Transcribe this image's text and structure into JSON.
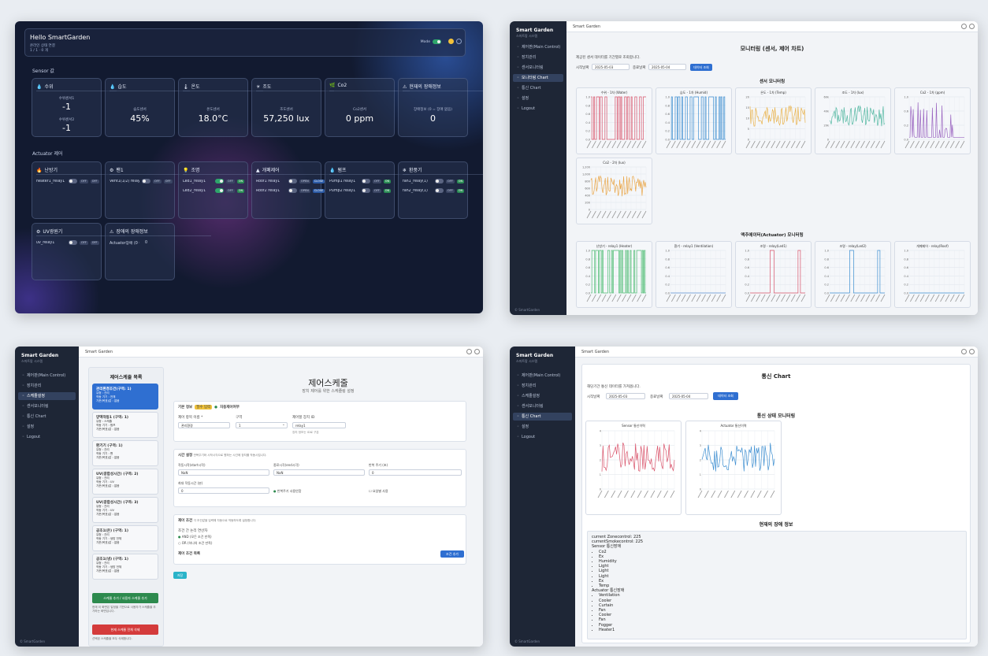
{
  "dashboard": {
    "title": "Hello SmartGarden",
    "sub1": "온라인 상태 연결",
    "sub2": "1 / 1 · 0 개",
    "header_right": "Mode",
    "sensor_section": "Sensor 값",
    "actuator_section": "Actuator 제어",
    "sensors": [
      {
        "icon": "💧",
        "name": "수위",
        "rows": [
          {
            "label": "수위센서1",
            "value": "-1"
          },
          {
            "label": "수위센서2",
            "value": "-1"
          }
        ]
      },
      {
        "icon": "💧",
        "name": "습도",
        "sub": "습도센서",
        "value": "45%"
      },
      {
        "icon": "🌡",
        "name": "온도",
        "sub": "온도센서",
        "value": "18.0°C"
      },
      {
        "icon": "☀",
        "name": "조도",
        "sub": "조도센서",
        "value": "57,250 lux"
      },
      {
        "icon": "🌿",
        "name": "Co2",
        "sub": "Co2센서",
        "value": "0 ppm"
      },
      {
        "icon": "⚠",
        "name": "현재의 장애정보",
        "sub": "장애정보 (0 = 장애 없음)",
        "value": "0"
      }
    ],
    "actuators": [
      {
        "icon": "🔥",
        "name": "난방기",
        "rows": [
          {
            "label": "heater1_relay1",
            "state": "OFF",
            "btn": "OFF"
          }
        ]
      },
      {
        "icon": "⚙",
        "name": "팬1",
        "rows": [
          {
            "label": "Vent1(1/2) relay(1)",
            "state": "OFF",
            "btn": "OFF"
          }
        ]
      },
      {
        "icon": "💡",
        "name": "조명",
        "rows": [
          {
            "label": "Led1_relay1",
            "state": "OFF",
            "btn": "ON"
          },
          {
            "label": "Led2_relay1",
            "state": "OFF",
            "btn": "ON"
          }
        ]
      },
      {
        "icon": "▲",
        "name": "개폐제어",
        "rows": [
          {
            "label": "Roof1 relay1",
            "state": "OPEN",
            "btn": "CLOSE"
          },
          {
            "label": "Roof2 relay1",
            "state": "OPEN",
            "btn": "CLOSE"
          }
        ]
      },
      {
        "icon": "💧",
        "name": "펌프",
        "rows": [
          {
            "label": "Pump1 relay1",
            "state": "OFF",
            "btn": "ON"
          },
          {
            "label": "Pump2 relay1",
            "state": "OFF",
            "btn": "ON"
          }
        ]
      },
      {
        "icon": "❄",
        "name": "환풍기",
        "rows": [
          {
            "label": "fan1_relay(1)",
            "state": "OFF",
            "btn": "ON"
          },
          {
            "label": "fan2_relay(1)",
            "state": "OFF",
            "btn": "ON"
          }
        ]
      },
      {
        "icon": "⚙",
        "name": "UV광원기",
        "rows": [
          {
            "label": "uv_relay1",
            "state": "OFF",
            "btn": "OFF"
          }
        ]
      },
      {
        "icon": "⚠",
        "name": "장애의 장애정보",
        "rows": [
          {
            "label": "Actuator장애 (0 = 정상)",
            "state": "0",
            "btn": ""
          }
        ]
      }
    ]
  },
  "monitor": {
    "brand": "Smart Garden",
    "brand_sub": "스마트팜 시스템",
    "topbar": "Smart Garden",
    "nav": [
      "제어판(Main Control)",
      "장치관리",
      "센서모니터링",
      "모니터링 Chart",
      "통신 Chart",
      "설정",
      "Logout"
    ],
    "nav_active": 3,
    "title": "모니터링 (센서, 제어 차트)",
    "desc": "제공된 센서 데이터를 기간별로 조회합니다.",
    "start_label": "시작날짜",
    "start": "2025-05-03",
    "end_label": "종료날짜",
    "end": "2025-05-04",
    "btn": "데이터 조회",
    "sensor_title": "센서 모니터링",
    "actuator_title": "액추에이터(Actuator) 모니터링",
    "footer": "© SmartGarden",
    "sensor_charts": [
      {
        "name": "수위 - 1차 (Water)",
        "color": "#d9536a",
        "ylabels": [
          "1.0",
          "0.8",
          "0.6",
          "0.4",
          "0.2",
          "0.0"
        ]
      },
      {
        "name": "습도 - 1차 (Humid)",
        "color": "#3e8fd1",
        "ylabels": [
          "1.0",
          "0.8",
          "0.6",
          "0.4",
          "0.2",
          "0.0"
        ]
      },
      {
        "name": "온도 - 1차 (Temp)",
        "color": "#e9b24a",
        "ylabels": [
          "20",
          "15",
          "10",
          "5",
          "0"
        ]
      },
      {
        "name": "조도 - 1차 (lux)",
        "color": "#54b8a2",
        "ylabels": [
          "60k",
          "40k",
          "20k",
          "0"
        ]
      },
      {
        "name": "Co2 - 1차 (ppm)",
        "color": "#9a65c0",
        "ylabels": [
          "1.0",
          "0.6",
          "0.2",
          "0.0"
        ]
      },
      {
        "name": "Co2 - 2차 (lux)",
        "color": "#e9a74a",
        "ylabels": [
          "1,200",
          "1,000",
          "800",
          "600",
          "400",
          "200",
          "0"
        ]
      }
    ],
    "actuator_charts": [
      {
        "name": "난방기 - relay1 (Heater)",
        "color": "#4fbd74",
        "ylabels": [
          "1.0",
          "0.8",
          "0.6",
          "0.4",
          "0.2",
          "0.0"
        ]
      },
      {
        "name": "환기 - relay1 (Ventilation)",
        "color": "#5a8fd1",
        "ylabels": [
          "1.0",
          "0.8",
          "0.6",
          "0.4",
          "0.2",
          "0.0"
        ]
      },
      {
        "name": "조명 - relay(Led1)",
        "color": "#d9536a",
        "ylabels": [
          "1.0",
          "0.8",
          "0.6",
          "0.4",
          "0.2",
          "0.0"
        ]
      },
      {
        "name": "조명 - relay(Led2)",
        "color": "#3e8fd1",
        "ylabels": [
          "1.0",
          "0.8",
          "0.6",
          "0.4",
          "0.2",
          "0.0"
        ]
      },
      {
        "name": "개폐제어 - relay(Roof)",
        "color": "#3e8fd1",
        "ylabels": [
          "1.0",
          "0.8",
          "0.6",
          "0.4",
          "0.2",
          "0.0"
        ]
      }
    ]
  },
  "schedule": {
    "brand": "Smart Garden",
    "brand_sub": "스마트팜 시스템",
    "topbar": "Smart Garden",
    "nav": [
      "제어판(Main Control)",
      "장치관리",
      "스케줄설정",
      "센서모니터링",
      "통신 Chart",
      "설정",
      "Logout"
    ],
    "nav_active": 2,
    "list_title": "제어스케줄 목록",
    "items": [
      {
        "title": "관리환경조건(구역: 1)",
        "lines": [
          "유형 : 관리",
          "작동 기기 : 전체",
          "기준(목표)값 : 없음"
        ]
      },
      {
        "title": "양액작동1 (구역: 1)",
        "lines": [
          "유형 : 스케줄",
          "작동 기기 : 펌프",
          "기준(목표)값 : 없음"
        ]
      },
      {
        "title": "환기기 (구역: 1)",
        "lines": [
          "유형 : 관리",
          "작동 기기 : 팬",
          "기준(목표)값 : 없음"
        ]
      },
      {
        "title": "UV(광합성시간) (구역: 2)",
        "lines": [
          "유형 : 관리",
          "작동 기기 : UV",
          "기준(목표)값 : 없음"
        ]
      },
      {
        "title": "UV(광합성시간) (구역: 3)",
        "lines": [
          "유형 : 관리",
          "작동 기기 : UV",
          "기준(목표)값 : 없음"
        ]
      },
      {
        "title": "공조1(온) (구역: 1)",
        "lines": [
          "유형 : 관리",
          "작동 기기 : 냉방 전체",
          "기준(목표)값 : 없음"
        ]
      },
      {
        "title": "공조1(냉) (구역: 1)",
        "lines": [
          "유형 : 관리",
          "작동 기기 : 냉방 전체",
          "기준(목표)값 : 없음"
        ]
      }
    ],
    "btn_add": "스케줄 추가 / 사용자 스케줄 추가",
    "note_add": "현재 이 화면은 일정을 기반으로 사용자가 스케줄을 추가하는 화면입니다.",
    "btn_del": "현재 스케줄 전체 삭제",
    "note_del": "선택된 스케줄을 모두 삭제합니다.",
    "title": "제어스케줄",
    "subtitle": "장치 제어를 위한 스케줄링 설정",
    "basic_title": "기본 정보",
    "basic_badge": "필수 입력",
    "basic_check": "자동제어여부",
    "f_name_label": "제어 항목 이름 *",
    "f_name": "관리환경",
    "f_zone_label": "구역",
    "f_zone": "1",
    "f_dev_label": "제어할 장치 ID",
    "f_dev": "relay1",
    "f_dev_help": "장치 정보는 ID로 구분",
    "time_title": "시간 설정",
    "time_desc": "반복주기와 시작시각으로 원하는 시간에 장치를 작동시킵니다.",
    "t1_label": "작동시작(start시작)",
    "t1": "NaN",
    "t2_label": "종료시각(end시각)",
    "t2": "NaN",
    "t3_label": "반복 주기 (초)",
    "t3": "0",
    "t4_label": "최대 작동시간 (분)",
    "t4": "0",
    "t_check": "반복주기 사용안함",
    "t_check2": "요일별 사용",
    "cond_title": "제어 조건",
    "cond_desc": "각 조건값을 입력해 자동으로 작동하도록 설정합니다.",
    "cond_sub": "조건 간 논리 연산자",
    "cond_opt1": "AND (모든 조건 만족)",
    "cond_opt2": "OR (하나의 조건 만족)",
    "cond_rule": "제어 조건 목록",
    "cond_btn": "조건 추가",
    "save_btn": "저장",
    "footer": "© SmartGarden"
  },
  "comm": {
    "brand": "Smart Garden",
    "brand_sub": "스마트팜 시스템",
    "topbar": "Smart Garden",
    "nav": [
      "제어판(Main Control)",
      "장치관리",
      "스케줄설정",
      "센서모니터링",
      "통신 Chart",
      "설정",
      "Logout"
    ],
    "nav_active": 4,
    "title": "통신 Chart",
    "desc": "해당기간 통신 데이터를 가져옵니다.",
    "start_label": "시작날짜",
    "start": "2025-05-03",
    "end_label": "종료날짜",
    "end": "2025-05-04",
    "btn": "데이터 조회",
    "chart_title": "통신 상태 모니터링",
    "c1": "Sensor 통신이력",
    "c2": "Actuator 통신이력",
    "info_title": "현재의 장애 정보",
    "lines": [
      "current Zonecontrol: 225",
      "currentSmokecontrol: 225",
      "Sensor 통신장애"
    ],
    "sensor_items": [
      "Co2",
      "Ex",
      "Humidity",
      "Light",
      "Light",
      "Light",
      "Ex",
      "Temp"
    ],
    "act_title": "Actuator 통신장애",
    "act_items": [
      "Ventilation",
      "Cooler",
      "Curtain",
      "Fan",
      "Cooler",
      "Fan",
      "Fogger",
      "Heater1"
    ],
    "footer": "© SmartGarden"
  }
}
